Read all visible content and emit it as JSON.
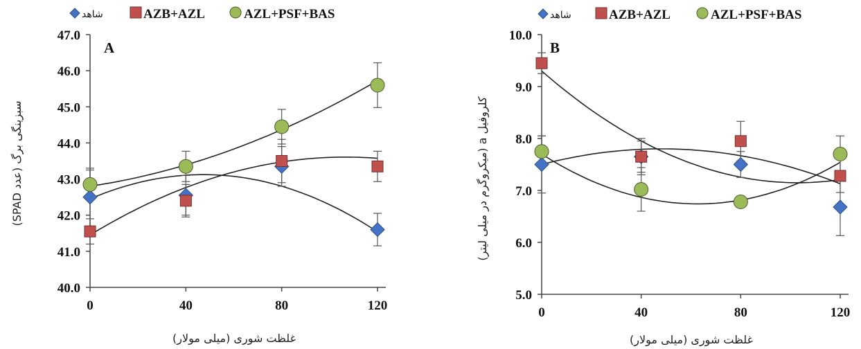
{
  "chart_data": [
    {
      "type": "scatter",
      "panel_label": "A",
      "xlabel": "غلظت شوری (میلی مولار)",
      "ylabel": "سبزینگی برگ (عدد SPAD)",
      "x": [
        0,
        40,
        80,
        120
      ],
      "x_ticks": [
        "0",
        "40",
        "80",
        "120"
      ],
      "y_ticks": [
        "40.0",
        "41.0",
        "42.0",
        "43.0",
        "44.0",
        "45.0",
        "46.0",
        "47.0"
      ],
      "xlim": [
        0,
        120
      ],
      "ylim": [
        40,
        47
      ],
      "series": [
        {
          "name": "شاهد",
          "marker": "diamond",
          "color": "#4472c4",
          "values": [
            42.5,
            42.55,
            43.35,
            41.6
          ],
          "errors": [
            0.8,
            0.55,
            0.55,
            0.45
          ],
          "trend": [
            0.0,
            0.0284,
            -0.0003,
            42.45
          ]
        },
        {
          "name": "AZB+AZL",
          "marker": "square",
          "color": "#c0504d",
          "values": [
            41.55,
            42.4,
            43.5,
            43.35
          ],
          "errors": [
            0.35,
            0.45,
            0.6,
            0.42
          ],
          "trend": [
            0.0,
            0.0405,
            -0.00019,
            41.45
          ]
        },
        {
          "name": "AZL+PSF+BAS",
          "marker": "circle",
          "color": "#9bbb59",
          "values": [
            42.85,
            43.35,
            44.45,
            45.6
          ],
          "errors": [
            0.4,
            0.42,
            0.48,
            0.62
          ],
          "trend": [
            0.0,
            0.01,
            0.00012,
            42.8
          ]
        }
      ],
      "legend": "top"
    },
    {
      "type": "scatter",
      "panel_label": "B",
      "xlabel": "غلظت شوری (میلی مولار)",
      "ylabel": "کلروفیل a (میکروگرم در میلی لیتر)",
      "x": [
        0,
        40,
        80,
        120
      ],
      "x_ticks": [
        "0",
        "40",
        "80",
        "120"
      ],
      "y_ticks": [
        "5.0",
        "6.0",
        "7.0",
        "8.0",
        "9.0",
        "10.0"
      ],
      "xlim": [
        0,
        120
      ],
      "ylim": [
        5,
        10
      ],
      "series": [
        {
          "name": "شاهد",
          "marker": "diamond",
          "color": "#4472c4",
          "values": [
            7.5,
            7.65,
            7.5,
            6.68
          ],
          "errors": [
            0.55,
            0.35,
            0.25,
            0.55
          ],
          "trend": [
            0.0,
            0.0125,
            -0.00013,
            7.5
          ]
        },
        {
          "name": "AZB+AZL",
          "marker": "square",
          "color": "#c0504d",
          "values": [
            9.45,
            7.65,
            7.95,
            7.28
          ],
          "errors": [
            0.2,
            0.3,
            0.38,
            0.32
          ],
          "trend": [
            0.0,
            -0.0418,
            0.000203,
            9.3
          ]
        },
        {
          "name": "AZL+PSF+BAS",
          "marker": "circle",
          "color": "#9bbb59",
          "values": [
            7.75,
            7.02,
            6.78,
            7.7
          ],
          "errors": [
            0.3,
            0.42,
            0.08,
            0.35
          ],
          "trend": [
            0.0,
            -0.0306,
            0.000244,
            7.7
          ]
        }
      ],
      "legend": "top"
    }
  ]
}
